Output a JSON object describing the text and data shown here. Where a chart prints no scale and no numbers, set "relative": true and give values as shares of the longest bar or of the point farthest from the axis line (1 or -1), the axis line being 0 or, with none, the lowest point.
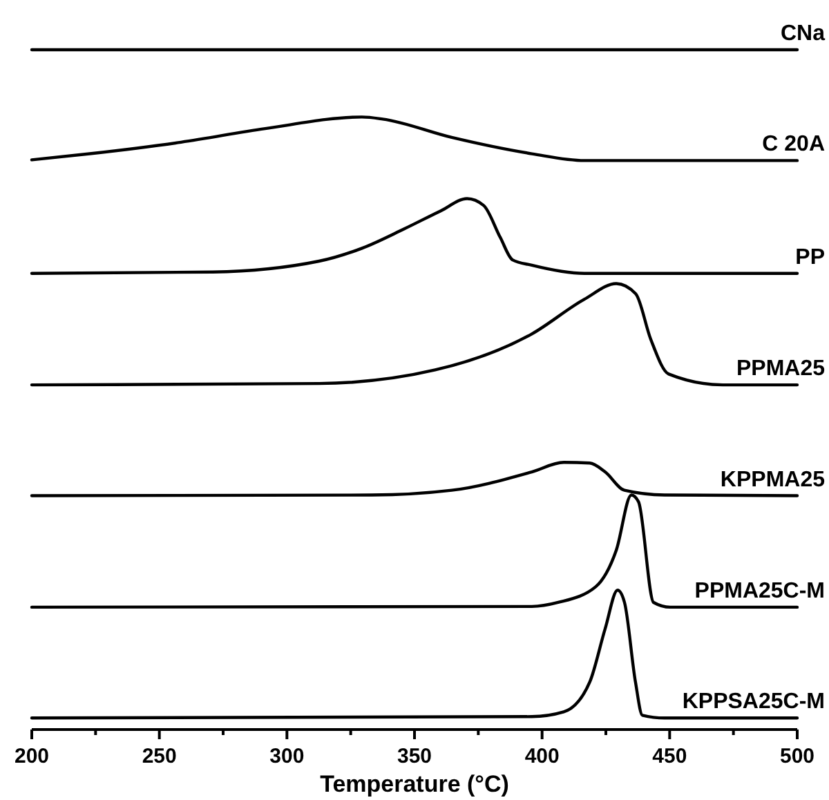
{
  "chart_data": {
    "type": "line",
    "relative": true,
    "xlabel": "Temperature (°C)",
    "xlim": [
      200,
      500
    ],
    "xticks": [
      200,
      {
        "value": 225,
        "label": null
      },
      250,
      {
        "value": 275,
        "label": null
      },
      300,
      {
        "value": 325,
        "label": null
      },
      350,
      {
        "value": 375,
        "label": null
      },
      400,
      {
        "value": 425,
        "label": null
      },
      450,
      {
        "value": 475,
        "label": null
      },
      500
    ],
    "line_style": "solid",
    "series": [
      {
        "name": "CNa",
        "color": "#000000",
        "x": [
          200,
          500
        ],
        "values": [
          1,
          1
        ]
      },
      {
        "name": "C 20A",
        "color": "#000000",
        "x": [
          200,
          222.7,
          258.5,
          291.5,
          329.4,
          337.5,
          364.6,
          396,
          416.6,
          500
        ],
        "values": [
          0.838,
          0.847,
          0.864,
          0.884,
          0.901,
          0.898,
          0.871,
          0.847,
          0.837,
          0.837
        ]
      },
      {
        "name": "PP",
        "color": "#000000",
        "x": [
          200,
          270.9,
          312.6,
          329.4,
          345.7,
          360.3,
          370.6,
          377.1,
          383.6,
          388.4,
          396,
          416.6,
          500
        ],
        "values": [
          0.671,
          0.673,
          0.689,
          0.708,
          0.736,
          0.763,
          0.781,
          0.771,
          0.724,
          0.691,
          0.683,
          0.671,
          0.671
        ]
      },
      {
        "name": "PPMA25",
        "color": "#000000",
        "x": [
          200,
          312.6,
          358.1,
          396,
          416.6,
          429.1,
          436.7,
          442.6,
          449.6,
          470.8,
          500
        ],
        "values": [
          0.507,
          0.509,
          0.529,
          0.582,
          0.633,
          0.656,
          0.641,
          0.574,
          0.523,
          0.507,
          0.507
        ]
      },
      {
        "name": "KPPMA25",
        "color": "#000000",
        "x": [
          200,
          333.2,
          364.6,
          396,
          408.5,
          418.7,
          424.7,
          432.3,
          448,
          500
        ],
        "values": [
          0.344,
          0.345,
          0.352,
          0.379,
          0.393,
          0.392,
          0.379,
          0.352,
          0.345,
          0.344
        ]
      },
      {
        "name": "PPMA25C-M",
        "color": "#000000",
        "x": [
          200,
          396,
          406.3,
          421,
          429.1,
          435,
          437.8,
          443.7,
          450.2,
          500
        ],
        "values": [
          0.18,
          0.181,
          0.187,
          0.21,
          0.264,
          0.345,
          0.335,
          0.187,
          0.18,
          0.18
        ]
      },
      {
        "name": "KPPSA25C-M",
        "color": "#000000",
        "x": [
          200,
          396,
          408.5,
          418.7,
          424.7,
          429.6,
          432.3,
          436.6,
          439.3,
          448,
          500
        ],
        "values": [
          0.017,
          0.019,
          0.026,
          0.07,
          0.148,
          0.205,
          0.187,
          0.07,
          0.021,
          0.017,
          0.017
        ]
      }
    ]
  }
}
